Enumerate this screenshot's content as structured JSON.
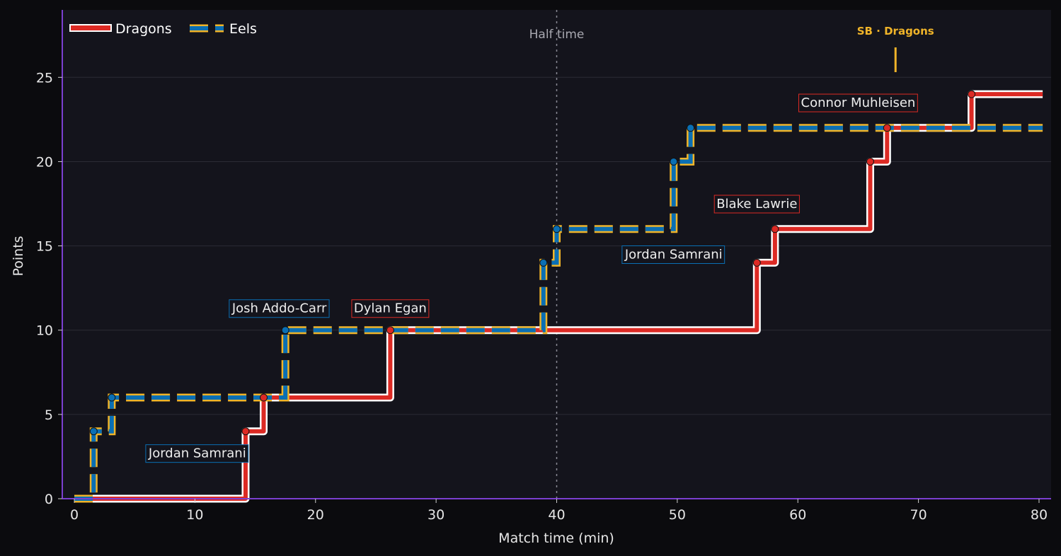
{
  "chart_data": {
    "type": "line",
    "step": true,
    "xlabel": "Match time (min)",
    "ylabel": "Points",
    "xlim": [
      -1,
      81
    ],
    "ylim": [
      0,
      29
    ],
    "x_ticks": [
      0,
      10,
      20,
      30,
      40,
      50,
      60,
      70,
      80
    ],
    "y_ticks": [
      0,
      5,
      10,
      15,
      20,
      25
    ],
    "grid": "horizontal",
    "legend_position": "top-left",
    "series": [
      {
        "name": "Dragons",
        "color": "#dc2a24",
        "style": "solid",
        "events": [
          {
            "x": 14.2,
            "y": 4
          },
          {
            "x": 15.7,
            "y": 6
          },
          {
            "x": 26.2,
            "y": 10
          },
          {
            "x": 56.6,
            "y": 14
          },
          {
            "x": 58.1,
            "y": 16
          },
          {
            "x": 66.0,
            "y": 20
          },
          {
            "x": 67.4,
            "y": 22
          },
          {
            "x": 74.4,
            "y": 24
          }
        ],
        "start": {
          "x": 0,
          "y": 0
        },
        "end_x": 80.3
      },
      {
        "name": "Eels",
        "color": "#0a6fb4",
        "dash_color": "#f0b429",
        "style": "dashed",
        "events": [
          {
            "x": 1.6,
            "y": 4
          },
          {
            "x": 3.1,
            "y": 6
          },
          {
            "x": 17.5,
            "y": 10
          },
          {
            "x": 38.9,
            "y": 14
          },
          {
            "x": 40.0,
            "y": 16
          },
          {
            "x": 49.7,
            "y": 20
          },
          {
            "x": 51.1,
            "y": 22
          }
        ],
        "start": {
          "x": 0,
          "y": 0
        },
        "end_x": 80.3
      }
    ],
    "annotations": [
      {
        "text": "Jordan Samrani",
        "x": 10.2,
        "y": 2.7,
        "team": "Eels"
      },
      {
        "text": "Josh Addo-Carr",
        "x": 17.0,
        "y": 11.3,
        "team": "Eels"
      },
      {
        "text": "Dylan Egan",
        "x": 26.2,
        "y": 11.3,
        "team": "Dragons"
      },
      {
        "text": "Jordan Samrani",
        "x": 49.7,
        "y": 14.5,
        "team": "Eels"
      },
      {
        "text": "Blake Lawrie",
        "x": 56.6,
        "y": 17.5,
        "team": "Dragons"
      },
      {
        "text": "Connor Muhleisen",
        "x": 65.0,
        "y": 23.5,
        "team": "Dragons"
      }
    ],
    "half_time": {
      "x": 40,
      "label": "Half time"
    },
    "sin_bin": {
      "x": 68.1,
      "label": "SB · Dragons",
      "color": "#f0b429"
    }
  }
}
